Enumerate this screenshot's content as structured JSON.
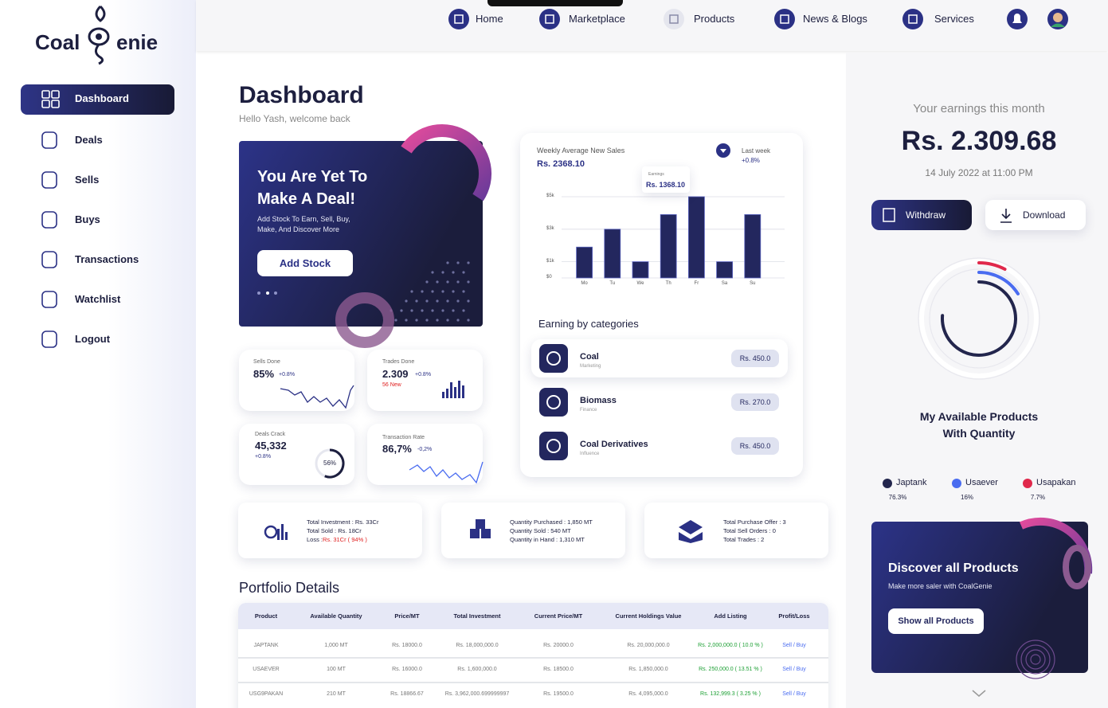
{
  "brand": {
    "left": "Coal",
    "right": "enie"
  },
  "sidebar": {
    "items": [
      "Dashboard",
      "Deals",
      "Sells",
      "Buys",
      "Transactions",
      "Watchlist",
      "Logout"
    ]
  },
  "nav": {
    "items": [
      "Home",
      "Marketplace",
      "Products",
      "News & Blogs",
      "Services"
    ]
  },
  "header": {
    "title": "Dashboard",
    "subtitle": "Hello Yash, welcome back"
  },
  "promo": {
    "title_lines": [
      "You Are Yet To",
      "Make A Deal!"
    ],
    "text_lines": [
      "Add Stock To Earn, Sell, Buy,",
      "Make, And Discover More"
    ],
    "button": "Add Stock"
  },
  "stats": [
    {
      "label": "Sells Done",
      "value": "85%",
      "change": "+0.8%"
    },
    {
      "label": "Trades Done",
      "value": "2.309",
      "change": "+0.8%",
      "note": "56 New"
    },
    {
      "label": "Deals Crack",
      "value": "45,332",
      "change": "+0.8%",
      "ring": {
        "value": 56,
        "label": "56%"
      }
    },
    {
      "label": "Transaction Rate",
      "value": "86,7%",
      "change": "-0,2%"
    }
  ],
  "sales_chart": {
    "type": "bar",
    "title": "Weekly Average New Sales",
    "average": "Rs. 2368.10",
    "period": "Last week",
    "change": "+0.8%",
    "tooltip": {
      "label": "Earnings",
      "value": "Rs. 1368.10"
    },
    "categories": [
      "Mo",
      "Tu",
      "We",
      "Th",
      "Fr",
      "Sa",
      "Su"
    ],
    "values": [
      1900,
      3000,
      1000,
      3900,
      5000,
      1000,
      3900
    ],
    "color": "#23275e",
    "ylim": [
      0,
      5000
    ],
    "yticks": [
      {
        "value": 0,
        "label": "$0"
      },
      {
        "value": 1000,
        "label": "$1k"
      },
      {
        "value": 3000,
        "label": "$3k"
      },
      {
        "value": 5000,
        "label": "$5k"
      }
    ],
    "grid": true
  },
  "earning_categories": {
    "title": "Earning by categories",
    "items": [
      {
        "name": "Coal",
        "sub": "Marketing",
        "amount": "Rs. 450.0"
      },
      {
        "name": "Biomass",
        "sub": "Finance",
        "amount": "Rs. 270.0"
      },
      {
        "name": "Coal Derivatives",
        "sub": "Influence",
        "amount": "Rs. 450.0"
      }
    ]
  },
  "summary": [
    {
      "lines": [
        "Total Investment : Rs. 33Cr",
        "Total Sold : Rs. 18Cr"
      ],
      "loss_label": "Loss : ",
      "loss_value": "Rs. 31Cr ( 94% )"
    },
    {
      "lines": [
        "Quantity Purchased : 1,850 MT",
        "Quantity Sold : 540 MT",
        "Quantity in Hand : 1,310 MT"
      ]
    },
    {
      "lines": [
        "Total Purchase Offer : 3",
        "Total Sell Orders : 0",
        "Total Trades : 2"
      ]
    }
  ],
  "portfolio": {
    "title": "Portfolio Details",
    "columns": [
      "Product",
      "Available Quantity",
      "Price/MT",
      "Total Investment",
      "Current Price/MT",
      "Current Holdings Value",
      "Add Listing",
      "Profit/Loss"
    ],
    "rows": [
      [
        "JAPTANK",
        "1,000 MT",
        "Rs. 18000.0",
        "Rs. 18,000,000.0",
        "Rs. 20000.0",
        "Rs. 20,000,000.0",
        "Rs. 2,000,000.0 ( 10.0 % )",
        "Sell / Buy"
      ],
      [
        "USAEVER",
        "100 MT",
        "Rs. 16000.0",
        "Rs. 1,600,000.0",
        "Rs. 18500.0",
        "Rs. 1,850,000.0",
        "Rs. 250,000.0 ( 13.51 % )",
        "Sell / Buy"
      ],
      [
        "USG9PAKAN",
        "210 MT",
        "Rs. 18866.67",
        "Rs. 3,962,000.699999997",
        "Rs. 19500.0",
        "Rs. 4,095,000.0",
        "Rs. 132,999.3 ( 3.25 % )",
        "Sell / Buy"
      ]
    ]
  },
  "earnings": {
    "label": "Your earnings this month",
    "amount": "Rs. 2.309.68",
    "date": "14 July 2022 at 11:00 PM",
    "withdraw": "Withdraw",
    "download": "Download"
  },
  "products_chart": {
    "type": "radial",
    "title_lines": [
      "My Available Products",
      "With Quantity"
    ],
    "series": [
      {
        "name": "Japtank",
        "color": "#23264d",
        "values": [
          76.3
        ],
        "value_labels": [
          "76.3%"
        ]
      },
      {
        "name": "Usaever",
        "color": "#4a6cf0",
        "values": [
          16
        ],
        "value_labels": [
          "16%"
        ]
      },
      {
        "name": "Usapakan",
        "color": "#e0284b",
        "values": [
          7.7
        ],
        "value_labels": [
          "7.7%"
        ]
      }
    ]
  },
  "discover": {
    "title": "Discover all Products",
    "text": "Make more saler with CoalGenie",
    "button": "Show all Products"
  }
}
